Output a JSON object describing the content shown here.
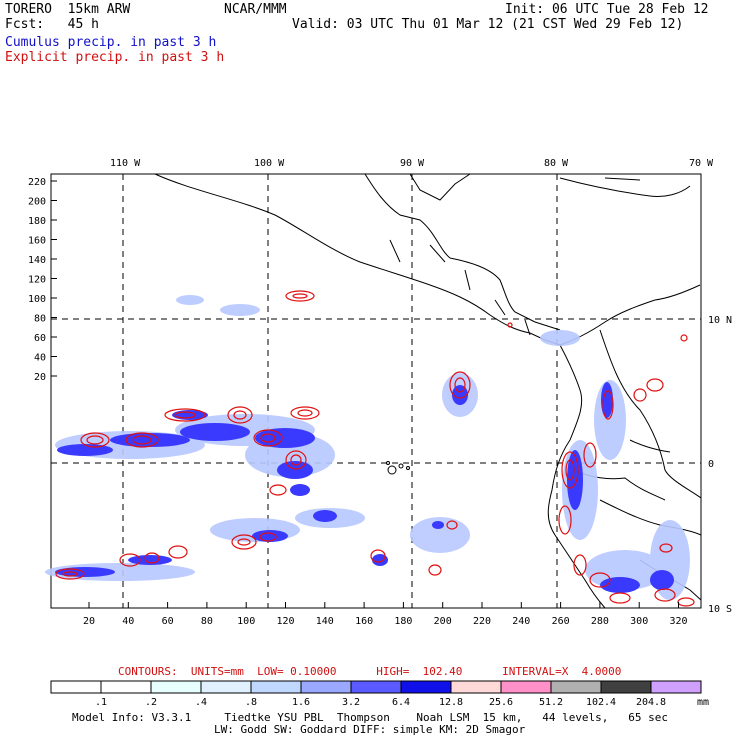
{
  "header": {
    "model": "TORERO  15km ARW",
    "org": "NCAR/MMM",
    "init": "Init: 06 UTC Tue 28 Feb 12",
    "fcst": "Fcst:   45 h",
    "valid": "Valid: 03 UTC Thu 01 Mar 12 (21 CST Wed 29 Feb 12)",
    "legend_cumulus": "Cumulus precip. in past 3 h",
    "legend_explicit": "Explicit precip. in past 3 h"
  },
  "map": {
    "lon_labels": [
      "110 W",
      "100 W",
      "90 W",
      "80 W",
      "70 W"
    ],
    "lat_labels": [
      "10 N",
      "0",
      "10 S"
    ],
    "y_ticks": [
      "220",
      "200",
      "180",
      "160",
      "140",
      "120",
      "100",
      "80",
      "60",
      "40",
      "20"
    ],
    "x_ticks": [
      "20",
      "40",
      "60",
      "80",
      "100",
      "120",
      "140",
      "160",
      "180",
      "200",
      "220",
      "240",
      "260",
      "280",
      "300",
      "320"
    ],
    "colors": {
      "cumulus": "#3a3aff",
      "cumulus_light": "#b8c8ff",
      "explicit": "#e01010",
      "coast": "#000000"
    }
  },
  "contours_line": "CONTOURS:  UNITS=mm  LOW= 0.10000      HIGH=  102.40      INTERVAL=X  4.0000",
  "colorbar": {
    "labels": [
      ".1",
      ".2",
      ".4",
      ".8",
      "1.6",
      "3.2",
      "6.4",
      "12.8",
      "25.6",
      "51.2",
      "102.4",
      "204.8"
    ],
    "unit": "mm",
    "colors": [
      "#ffffff",
      "#ffffff",
      "#e8ffff",
      "#e0f0ff",
      "#c0d8ff",
      "#9aa8ff",
      "#5a5aff",
      "#1010e8",
      "#ffd8d8",
      "#ff90c8",
      "#b0b0b0",
      "#404040",
      "#d0a0ff"
    ]
  },
  "footer": {
    "line1": "Model Info: V3.3.1     Tiedtke YSU PBL  Thompson    Noah LSM  15 km,   44 levels,   65 sec",
    "line2": "LW: Godd SW: Goddard DIFF: simple KM: 2D Smagor"
  }
}
